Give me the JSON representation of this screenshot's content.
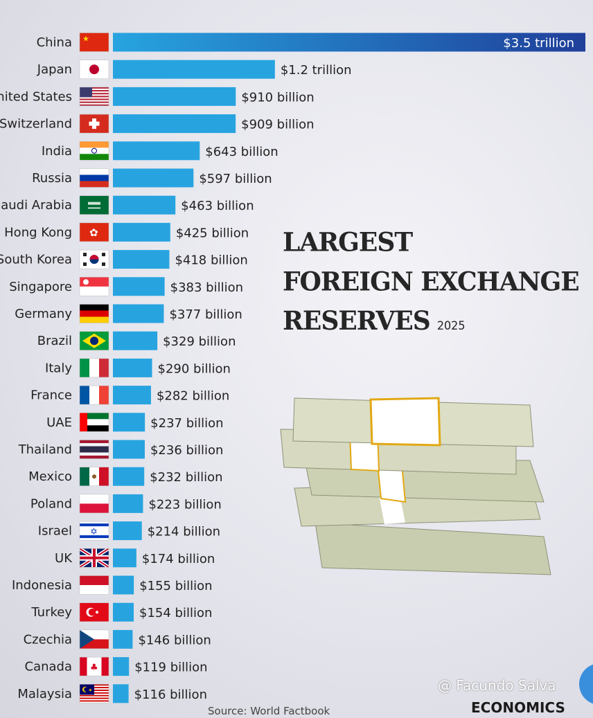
{
  "chart_data": {
    "type": "bar",
    "orientation": "horizontal",
    "title": "LARGEST FOREIGN EXCHANGE RESERVES",
    "subtitle": "2025",
    "unit": "USD billion",
    "xlim": [
      0,
      3500
    ],
    "grid": false,
    "categories": [
      "China",
      "Japan",
      "United States",
      "Switzerland",
      "India",
      "Russia",
      "Saudi Arabia",
      "Hong Kong",
      "South Korea",
      "Singapore",
      "Germany",
      "Brazil",
      "Italy",
      "France",
      "UAE",
      "Thailand",
      "Mexico",
      "Poland",
      "Israel",
      "UK",
      "Indonesia",
      "Turkey",
      "Czechia",
      "Canada",
      "Malaysia"
    ],
    "values": [
      3500,
      1200,
      910,
      909,
      643,
      597,
      463,
      425,
      418,
      383,
      377,
      329,
      290,
      282,
      237,
      236,
      232,
      223,
      214,
      174,
      155,
      154,
      146,
      119,
      116
    ],
    "data_labels": [
      "$3.5 trillion",
      "$1.2 trillion",
      "$910 billion",
      "$909 billion",
      "$643 billion",
      "$597 billion",
      "$463 billion",
      "$425 billion",
      "$418 billion",
      "$383 billion",
      "$377 billion",
      "$329 billion",
      "$290 billion",
      "$282 billion",
      "$237 billion",
      "$236 billion",
      "$232 billion",
      "$223 billion",
      "$214 billion",
      "$174 billion",
      "$155 billion",
      "$154 billion",
      "$146 billion",
      "$119 billion",
      "$116 billion"
    ],
    "flags": [
      "cn",
      "jp",
      "us",
      "ch",
      "in",
      "ru",
      "sa",
      "hk",
      "kr",
      "sg",
      "de",
      "br",
      "it",
      "fr",
      "ae",
      "th",
      "mx",
      "pl",
      "il",
      "gb",
      "id",
      "tr",
      "cz",
      "ca",
      "my"
    ],
    "colors": {
      "bar": "#27a4e0",
      "top_bar_end": "#1f3f9a",
      "label": "#222222"
    }
  },
  "title": {
    "line1": "LARGEST",
    "line2": "FOREIGN EXCHANGE",
    "line3": "RESERVES",
    "year": "2025"
  },
  "source": "Source: World Factbook",
  "watermark": "@ Facundo Salva",
  "logo": "ECONOMICS"
}
